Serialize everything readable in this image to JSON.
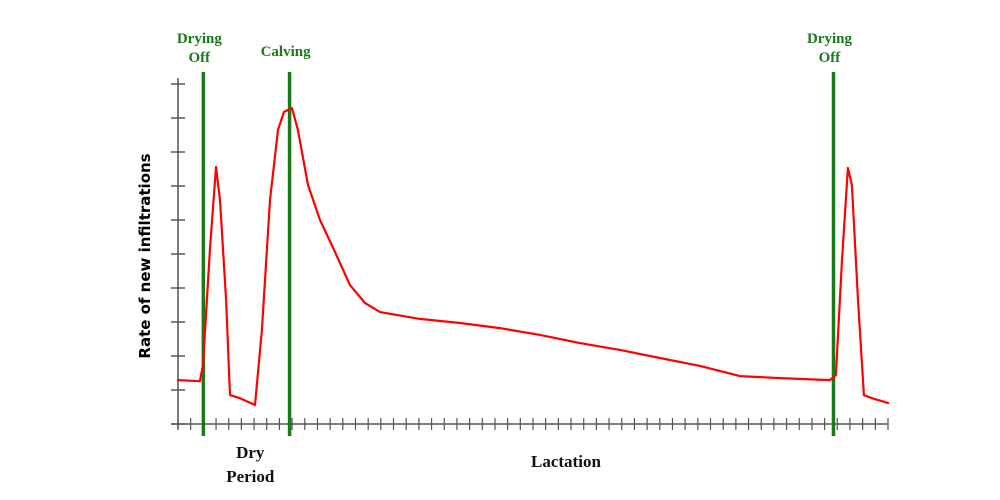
{
  "chart_data": {
    "type": "line",
    "title": "",
    "ylabel": "Rate of new infiltrations",
    "xlabel": "",
    "xlim": [
      0,
      56
    ],
    "ylim": [
      0,
      10
    ],
    "x_tick_count": 57,
    "y_tick_count": 11,
    "grid": false,
    "line_color": "#ff0000",
    "marker_color": "#1a7a1a",
    "markers": [
      {
        "label_lines": [
          "Drying",
          "Off"
        ],
        "x": 2
      },
      {
        "label_lines": [
          "Calving"
        ],
        "x": 8.8
      },
      {
        "label_lines": [
          "Drying",
          "Off"
        ],
        "x": 51.7
      }
    ],
    "period_labels": [
      {
        "lines": [
          "Dry",
          "Period"
        ],
        "x": 5.7
      },
      {
        "lines": [
          "Lactation"
        ],
        "x": 30.6
      }
    ],
    "series": [
      {
        "x": [
          0,
          1.73,
          1.97,
          2.52,
          3.0,
          3.31,
          3.79,
          4.1,
          4.89,
          5.52,
          6.07,
          6.62,
          7.26,
          7.89,
          8.36,
          8.99,
          9.46,
          10.25,
          11.2,
          12.38,
          13.56,
          14.75,
          15.93,
          19.08,
          22.24,
          25.39,
          28.55,
          31.7,
          34.86,
          38.01,
          41.17,
          44.32,
          47.48,
          51.42,
          51.89,
          52.37,
          52.84,
          53.15,
          53.63,
          54.1,
          54.73,
          56
        ],
        "y": [
          1.29,
          1.26,
          1.74,
          5.12,
          7.56,
          6.59,
          3.65,
          0.85,
          0.76,
          0.65,
          0.56,
          2.76,
          6.59,
          8.65,
          9.18,
          9.29,
          8.65,
          7.03,
          6.0,
          5.06,
          4.09,
          3.56,
          3.29,
          3.09,
          2.97,
          2.82,
          2.62,
          2.38,
          2.18,
          1.94,
          1.71,
          1.41,
          1.35,
          1.29,
          1.44,
          4.82,
          7.53,
          7.03,
          3.65,
          0.85,
          0.76,
          0.62
        ]
      }
    ]
  }
}
